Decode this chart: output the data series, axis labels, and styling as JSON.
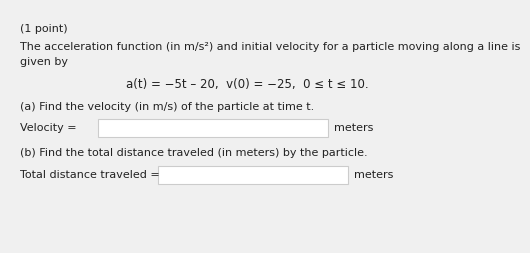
{
  "background_color": "#f0f0f0",
  "box_color": "#ffffff",
  "border_color": "#cccccc",
  "text_color": "#222222",
  "title_line": "(1 point)",
  "intro_line1": "The acceleration function (in m/s²) and initial velocity for a particle moving along a line is",
  "intro_line2": "given by",
  "equation": "a(t) = −5t – 20,  v(0) = −25,  0 ≤ t ≤ 10.",
  "part_a": "(a) Find the velocity (in m/s) of the particle at time t.",
  "label_a": "Velocity = ",
  "units_a": "meters",
  "part_b": "(b) Find the total distance traveled (in meters) by the particle.",
  "label_b": "Total distance traveled = ",
  "units_b": "meters",
  "font_size": 8.0,
  "eq_font_size": 8.5
}
